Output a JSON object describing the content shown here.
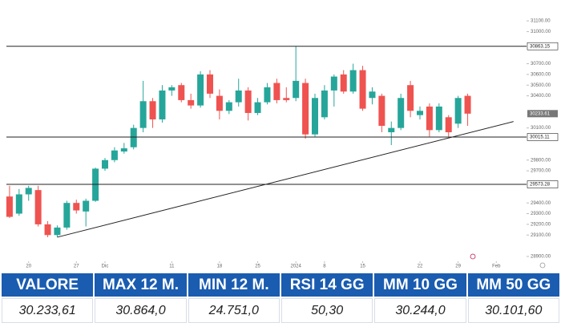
{
  "chart_data": {
    "type": "candlestick",
    "open": [
      29460,
      29300,
      29480,
      29520,
      29200,
      29100,
      29170,
      29400,
      29320,
      29420,
      29720,
      29800,
      29880,
      29920,
      30100,
      30350,
      30180,
      30450,
      30500,
      30360,
      30310,
      30600,
      30400,
      30260,
      30340,
      30450,
      30240,
      30340,
      30520,
      30380,
      30380,
      30520,
      30040,
      30200,
      30450,
      30600,
      30440,
      30640,
      30380,
      30400,
      30060,
      30100,
      30500,
      30220,
      30300,
      30080,
      30200,
      30140,
      30400
    ],
    "high": [
      29560,
      29530,
      29560,
      29560,
      29230,
      29190,
      29420,
      29430,
      29440,
      29730,
      29820,
      29920,
      29960,
      30130,
      30540,
      30380,
      30500,
      30500,
      30520,
      30420,
      30630,
      30640,
      30460,
      30360,
      30560,
      30480,
      30380,
      30520,
      30560,
      30480,
      30863,
      30560,
      30420,
      30500,
      30600,
      30640,
      30700,
      30680,
      30480,
      30420,
      30160,
      30420,
      30540,
      30300,
      30330,
      30330,
      30220,
      30400,
      30420
    ],
    "low": [
      29260,
      29280,
      29420,
      29180,
      29080,
      29080,
      29150,
      29300,
      29180,
      29410,
      29700,
      29780,
      29860,
      29900,
      30060,
      30100,
      30150,
      30400,
      30340,
      30280,
      30290,
      30380,
      30180,
      30230,
      30300,
      30170,
      30220,
      30320,
      30330,
      30340,
      30350,
      30000,
      30020,
      30180,
      30300,
      30420,
      30420,
      30260,
      30320,
      30060,
      29940,
      30080,
      30200,
      30180,
      30020,
      30060,
      30020,
      30100,
      30120
    ],
    "close": [
      29270,
      29480,
      29540,
      29200,
      29100,
      29170,
      29400,
      29330,
      29420,
      29720,
      29800,
      29890,
      29910,
      30100,
      30350,
      30180,
      30450,
      30480,
      30360,
      30310,
      30600,
      30420,
      30260,
      30340,
      30450,
      30240,
      30340,
      30480,
      30360,
      30360,
      30540,
      30040,
      30380,
      30450,
      30580,
      30440,
      30640,
      30280,
      30440,
      30120,
      30100,
      30380,
      30260,
      30260,
      30080,
      30300,
      30060,
      30380,
      30233.61
    ],
    "up_color": "#26a69a",
    "down_color": "#ef5350",
    "xticks": [
      {
        "value": 2,
        "label": "20"
      },
      {
        "value": 7,
        "label": "27"
      },
      {
        "value": 10,
        "label": "Dic"
      },
      {
        "value": 17,
        "label": "11"
      },
      {
        "value": 22,
        "label": "18"
      },
      {
        "value": 26,
        "label": "25"
      },
      {
        "value": 30,
        "label": "2024"
      },
      {
        "value": 33,
        "label": "8"
      },
      {
        "value": 37,
        "label": "15"
      },
      {
        "value": 43,
        "label": "22"
      },
      {
        "value": 47,
        "label": "29"
      },
      {
        "value": 51,
        "label": "Feb"
      }
    ],
    "xlim": [
      -1,
      54
    ],
    "ylim": [
      28825,
      31295
    ],
    "yticks": [
      {
        "value": 31100,
        "label": "31100.00"
      },
      {
        "value": 31000,
        "label": "31000.00"
      },
      {
        "value": 30700,
        "label": "30700.00"
      },
      {
        "value": 30600,
        "label": "30600.00"
      },
      {
        "value": 30500,
        "label": "30500.00"
      },
      {
        "value": 30400,
        "label": "30400.00"
      },
      {
        "value": 30100,
        "label": "30100.00"
      },
      {
        "value": 29800,
        "label": "29800.00"
      },
      {
        "value": 29700,
        "label": "29700.00"
      },
      {
        "value": 29400,
        "label": "29400.00"
      },
      {
        "value": 29300,
        "label": "29300.00"
      },
      {
        "value": 29200,
        "label": "29200.00"
      },
      {
        "value": 29100,
        "label": "29100.00"
      },
      {
        "value": 28900,
        "label": "28900.00"
      }
    ],
    "levels": [
      30863.15,
      30015.11,
      29573.28
    ],
    "last_price": 30233.61,
    "trendline": {
      "x": [
        5,
        52.8
      ],
      "y": [
        29080,
        30160
      ]
    }
  },
  "table": {
    "header": [
      "VALORE",
      "MAX 12 M.",
      "MIN 12 M.",
      "RSI 14 GG",
      "MM 10 GG",
      "MM 50 GG"
    ],
    "row": [
      "30.233,61",
      "30.864,0",
      "24.751,0",
      "50,30",
      "30.244,0",
      "30.101,60"
    ]
  }
}
